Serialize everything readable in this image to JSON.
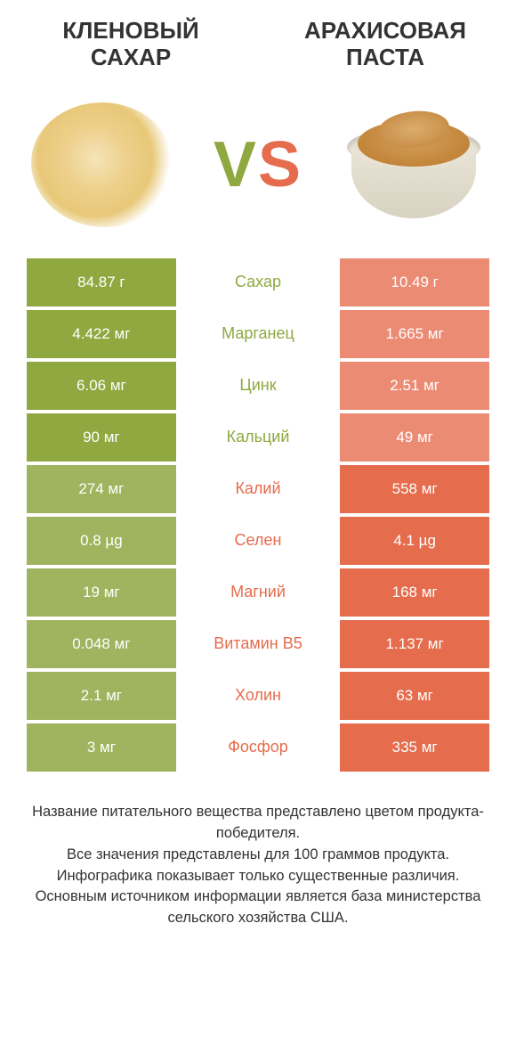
{
  "colors": {
    "left": "#8fa83f",
    "right": "#e56c4d",
    "left_muted": "#9fb45e",
    "right_muted": "#eb8b74"
  },
  "product_left": {
    "name": "КЛЕНОВЫЙ САХАР"
  },
  "product_right": {
    "name": "АРАХИСОВАЯ ПАСТА"
  },
  "vs": {
    "v": "V",
    "s": "S"
  },
  "rows": [
    {
      "nutrient": "Сахар",
      "left": "84.87 г",
      "right": "10.49 г",
      "winner": "left"
    },
    {
      "nutrient": "Марганец",
      "left": "4.422 мг",
      "right": "1.665 мг",
      "winner": "left"
    },
    {
      "nutrient": "Цинк",
      "left": "6.06 мг",
      "right": "2.51 мг",
      "winner": "left"
    },
    {
      "nutrient": "Кальций",
      "left": "90 мг",
      "right": "49 мг",
      "winner": "left"
    },
    {
      "nutrient": "Калий",
      "left": "274 мг",
      "right": "558 мг",
      "winner": "right"
    },
    {
      "nutrient": "Селен",
      "left": "0.8 µg",
      "right": "4.1 µg",
      "winner": "right"
    },
    {
      "nutrient": "Магний",
      "left": "19 мг",
      "right": "168 мг",
      "winner": "right"
    },
    {
      "nutrient": "Витамин B5",
      "left": "0.048 мг",
      "right": "1.137 мг",
      "winner": "right"
    },
    {
      "nutrient": "Холин",
      "left": "2.1 мг",
      "right": "63 мг",
      "winner": "right"
    },
    {
      "nutrient": "Фосфор",
      "left": "3 мг",
      "right": "335 мг",
      "winner": "right"
    }
  ],
  "footnote": "Название питательного вещества представлено цветом продукта-победителя.\nВсе значения представлены для 100 граммов продукта.\nИнфографика показывает только существенные различия.\nОсновным источником информации является база министерства сельского хозяйства США."
}
